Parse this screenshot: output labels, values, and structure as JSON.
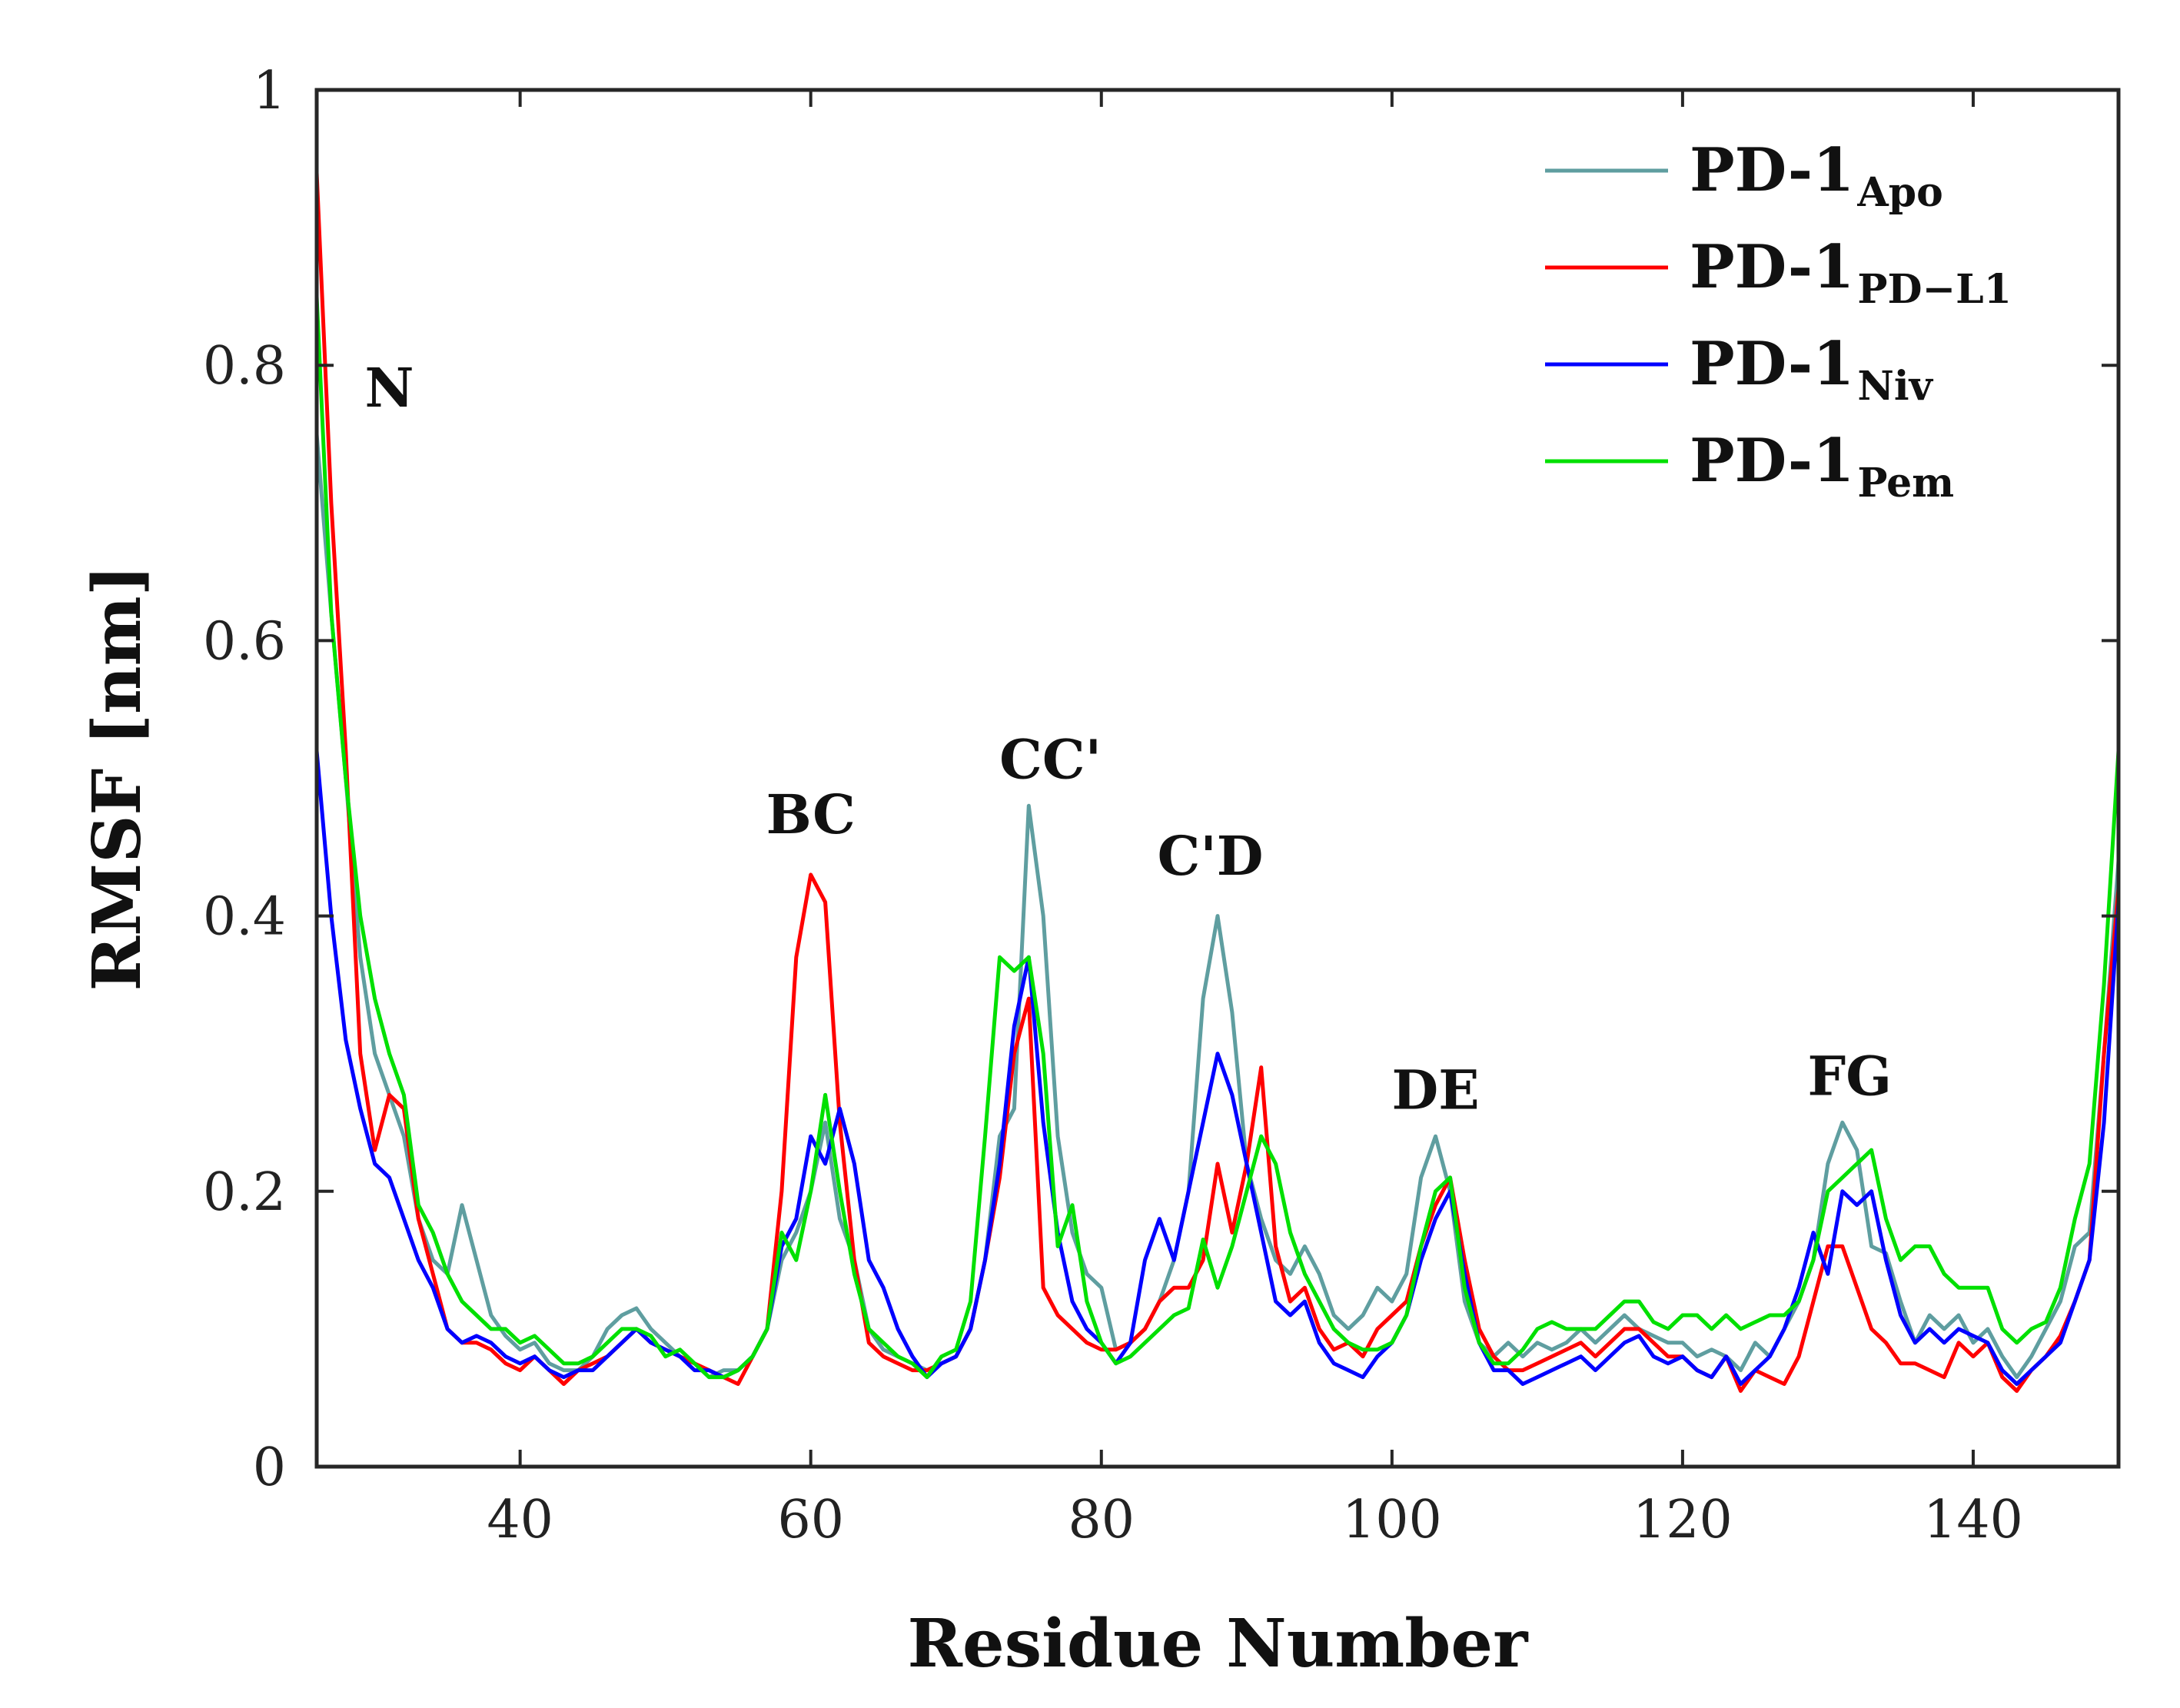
{
  "chart_data": {
    "type": "line",
    "xlabel": "Residue Number",
    "ylabel": "RMSF [nm]",
    "xlim": [
      26,
      150
    ],
    "ylim": [
      0,
      1
    ],
    "xticks": [
      40,
      60,
      80,
      100,
      120,
      140
    ],
    "yticks": [
      0,
      0.2,
      0.4,
      0.6,
      0.8,
      1
    ],
    "ytick_labels": [
      "0",
      "0.2",
      "0.4",
      "0.6",
      "0.8",
      "1"
    ],
    "grid": false,
    "legend_position": "top-right",
    "annotations": [
      {
        "text": "N",
        "x": 31,
        "y": 0.77
      },
      {
        "text": "BC",
        "x": 60,
        "y": 0.46
      },
      {
        "text": "CC'",
        "x": 76.5,
        "y": 0.5
      },
      {
        "text": "C'D",
        "x": 87.5,
        "y": 0.43
      },
      {
        "text": "DE",
        "x": 103,
        "y": 0.26
      },
      {
        "text": "FG",
        "x": 131.5,
        "y": 0.27
      }
    ],
    "series": [
      {
        "name": "PD-1",
        "subscript": "Apo",
        "color": "#5f9ea0",
        "x": [
          26,
          27,
          28,
          29,
          30,
          31,
          32,
          33,
          34,
          35,
          36,
          37,
          38,
          39,
          40,
          41,
          42,
          43,
          44,
          45,
          46,
          47,
          48,
          49,
          50,
          51,
          52,
          53,
          54,
          55,
          56,
          57,
          58,
          59,
          60,
          61,
          62,
          63,
          64,
          65,
          66,
          67,
          68,
          69,
          70,
          71,
          72,
          73,
          74,
          75,
          76,
          77,
          78,
          79,
          80,
          81,
          82,
          83,
          84,
          85,
          86,
          87,
          88,
          89,
          90,
          91,
          92,
          93,
          94,
          95,
          96,
          97,
          98,
          99,
          100,
          101,
          102,
          103,
          104,
          105,
          106,
          107,
          108,
          109,
          110,
          111,
          112,
          113,
          114,
          115,
          116,
          117,
          118,
          119,
          120,
          121,
          122,
          123,
          124,
          125,
          126,
          127,
          128,
          129,
          130,
          131,
          132,
          133,
          134,
          135,
          136,
          137,
          138,
          139,
          140,
          141,
          142,
          143,
          144,
          145,
          146,
          147,
          148,
          149,
          150
        ],
        "y": [
          0.75,
          0.62,
          0.5,
          0.37,
          0.3,
          0.27,
          0.24,
          0.18,
          0.15,
          0.14,
          0.19,
          0.15,
          0.11,
          0.095,
          0.085,
          0.09,
          0.075,
          0.07,
          0.07,
          0.08,
          0.1,
          0.11,
          0.115,
          0.1,
          0.09,
          0.08,
          0.075,
          0.065,
          0.07,
          0.07,
          0.08,
          0.1,
          0.15,
          0.17,
          0.2,
          0.25,
          0.18,
          0.15,
          0.1,
          0.085,
          0.08,
          0.075,
          0.07,
          0.075,
          0.08,
          0.1,
          0.15,
          0.24,
          0.26,
          0.48,
          0.4,
          0.24,
          0.17,
          0.14,
          0.13,
          0.085,
          0.09,
          0.1,
          0.12,
          0.15,
          0.2,
          0.34,
          0.4,
          0.33,
          0.22,
          0.18,
          0.15,
          0.14,
          0.16,
          0.14,
          0.11,
          0.1,
          0.11,
          0.13,
          0.12,
          0.14,
          0.21,
          0.24,
          0.2,
          0.12,
          0.09,
          0.08,
          0.09,
          0.08,
          0.09,
          0.085,
          0.09,
          0.1,
          0.09,
          0.1,
          0.11,
          0.1,
          0.095,
          0.09,
          0.09,
          0.08,
          0.085,
          0.08,
          0.07,
          0.09,
          0.08,
          0.1,
          0.12,
          0.15,
          0.22,
          0.25,
          0.23,
          0.16,
          0.155,
          0.12,
          0.09,
          0.11,
          0.1,
          0.11,
          0.09,
          0.1,
          0.08,
          0.065,
          0.08,
          0.1,
          0.12,
          0.16,
          0.17,
          0.3,
          0.44
        ]
      },
      {
        "name": "PD-1",
        "subscript": "PD−L1",
        "color": "#ff0000",
        "x": [
          26,
          27,
          28,
          29,
          30,
          31,
          32,
          33,
          34,
          35,
          36,
          37,
          38,
          39,
          40,
          41,
          42,
          43,
          44,
          45,
          46,
          47,
          48,
          49,
          50,
          51,
          52,
          53,
          54,
          55,
          56,
          57,
          58,
          59,
          60,
          61,
          62,
          63,
          64,
          65,
          66,
          67,
          68,
          69,
          70,
          71,
          72,
          73,
          74,
          75,
          76,
          77,
          78,
          79,
          80,
          81,
          82,
          83,
          84,
          85,
          86,
          87,
          88,
          89,
          90,
          91,
          92,
          93,
          94,
          95,
          96,
          97,
          98,
          99,
          100,
          101,
          102,
          103,
          104,
          105,
          106,
          107,
          108,
          109,
          110,
          111,
          112,
          113,
          114,
          115,
          116,
          117,
          118,
          119,
          120,
          121,
          122,
          123,
          124,
          125,
          126,
          127,
          128,
          129,
          130,
          131,
          132,
          133,
          134,
          135,
          136,
          137,
          138,
          139,
          140,
          141,
          142,
          143,
          144,
          145,
          146,
          147,
          148,
          149,
          150
        ],
        "y": [
          0.94,
          0.7,
          0.52,
          0.3,
          0.23,
          0.27,
          0.26,
          0.18,
          0.14,
          0.1,
          0.09,
          0.09,
          0.085,
          0.075,
          0.07,
          0.08,
          0.07,
          0.06,
          0.07,
          0.075,
          0.08,
          0.09,
          0.1,
          0.09,
          0.085,
          0.08,
          0.075,
          0.07,
          0.065,
          0.06,
          0.08,
          0.1,
          0.2,
          0.37,
          0.43,
          0.41,
          0.25,
          0.15,
          0.09,
          0.08,
          0.075,
          0.07,
          0.07,
          0.075,
          0.08,
          0.1,
          0.15,
          0.21,
          0.3,
          0.34,
          0.13,
          0.11,
          0.1,
          0.09,
          0.085,
          0.085,
          0.09,
          0.1,
          0.12,
          0.13,
          0.13,
          0.15,
          0.22,
          0.17,
          0.22,
          0.29,
          0.16,
          0.12,
          0.13,
          0.1,
          0.085,
          0.09,
          0.08,
          0.1,
          0.11,
          0.12,
          0.16,
          0.19,
          0.21,
          0.15,
          0.1,
          0.08,
          0.07,
          0.07,
          0.075,
          0.08,
          0.085,
          0.09,
          0.08,
          0.09,
          0.1,
          0.1,
          0.09,
          0.08,
          0.08,
          0.07,
          0.065,
          0.08,
          0.055,
          0.07,
          0.065,
          0.06,
          0.08,
          0.12,
          0.16,
          0.16,
          0.13,
          0.1,
          0.09,
          0.075,
          0.075,
          0.07,
          0.065,
          0.09,
          0.08,
          0.09,
          0.065,
          0.055,
          0.07,
          0.08,
          0.095,
          0.12,
          0.15,
          0.3,
          0.42
        ]
      },
      {
        "name": "PD-1",
        "subscript": "Niv",
        "color": "#0000ff",
        "x": [
          26,
          27,
          28,
          29,
          30,
          31,
          32,
          33,
          34,
          35,
          36,
          37,
          38,
          39,
          40,
          41,
          42,
          43,
          44,
          45,
          46,
          47,
          48,
          49,
          50,
          51,
          52,
          53,
          54,
          55,
          56,
          57,
          58,
          59,
          60,
          61,
          62,
          63,
          64,
          65,
          66,
          67,
          68,
          69,
          70,
          71,
          72,
          73,
          74,
          75,
          76,
          77,
          78,
          79,
          80,
          81,
          82,
          83,
          84,
          85,
          86,
          87,
          88,
          89,
          90,
          91,
          92,
          93,
          94,
          95,
          96,
          97,
          98,
          99,
          100,
          101,
          102,
          103,
          104,
          105,
          106,
          107,
          108,
          109,
          110,
          111,
          112,
          113,
          114,
          115,
          116,
          117,
          118,
          119,
          120,
          121,
          122,
          123,
          124,
          125,
          126,
          127,
          128,
          129,
          130,
          131,
          132,
          133,
          134,
          135,
          136,
          137,
          138,
          139,
          140,
          141,
          142,
          143,
          144,
          145,
          146,
          147,
          148,
          149,
          150
        ],
        "y": [
          0.52,
          0.4,
          0.31,
          0.26,
          0.22,
          0.21,
          0.18,
          0.15,
          0.13,
          0.1,
          0.09,
          0.095,
          0.09,
          0.08,
          0.075,
          0.08,
          0.07,
          0.065,
          0.07,
          0.07,
          0.08,
          0.09,
          0.1,
          0.09,
          0.085,
          0.08,
          0.07,
          0.07,
          0.065,
          0.07,
          0.08,
          0.1,
          0.16,
          0.18,
          0.24,
          0.22,
          0.26,
          0.22,
          0.15,
          0.13,
          0.1,
          0.08,
          0.065,
          0.075,
          0.08,
          0.1,
          0.15,
          0.22,
          0.32,
          0.37,
          0.25,
          0.17,
          0.12,
          0.1,
          0.09,
          0.075,
          0.09,
          0.15,
          0.18,
          0.15,
          0.2,
          0.25,
          0.3,
          0.27,
          0.22,
          0.17,
          0.12,
          0.11,
          0.12,
          0.09,
          0.075,
          0.07,
          0.065,
          0.08,
          0.09,
          0.11,
          0.15,
          0.18,
          0.2,
          0.14,
          0.09,
          0.07,
          0.07,
          0.06,
          0.065,
          0.07,
          0.075,
          0.08,
          0.07,
          0.08,
          0.09,
          0.095,
          0.08,
          0.075,
          0.08,
          0.07,
          0.065,
          0.08,
          0.06,
          0.07,
          0.08,
          0.1,
          0.13,
          0.17,
          0.14,
          0.2,
          0.19,
          0.2,
          0.15,
          0.11,
          0.09,
          0.1,
          0.09,
          0.1,
          0.095,
          0.09,
          0.07,
          0.06,
          0.07,
          0.08,
          0.09,
          0.12,
          0.15,
          0.25,
          0.41
        ]
      },
      {
        "name": "PD-1",
        "subscript": "Pem",
        "color": "#00e000",
        "x": [
          26,
          27,
          28,
          29,
          30,
          31,
          32,
          33,
          34,
          35,
          36,
          37,
          38,
          39,
          40,
          41,
          42,
          43,
          44,
          45,
          46,
          47,
          48,
          49,
          50,
          51,
          52,
          53,
          54,
          55,
          56,
          57,
          58,
          59,
          60,
          61,
          62,
          63,
          64,
          65,
          66,
          67,
          68,
          69,
          70,
          71,
          72,
          73,
          74,
          75,
          76,
          77,
          78,
          79,
          80,
          81,
          82,
          83,
          84,
          85,
          86,
          87,
          88,
          89,
          90,
          91,
          92,
          93,
          94,
          95,
          96,
          97,
          98,
          99,
          100,
          101,
          102,
          103,
          104,
          105,
          106,
          107,
          108,
          109,
          110,
          111,
          112,
          113,
          114,
          115,
          116,
          117,
          118,
          119,
          120,
          121,
          122,
          123,
          124,
          125,
          126,
          127,
          128,
          129,
          130,
          131,
          132,
          133,
          134,
          135,
          136,
          137,
          138,
          139,
          140,
          141,
          142,
          143,
          144,
          145,
          146,
          147,
          148,
          149,
          150
        ],
        "y": [
          0.85,
          0.62,
          0.5,
          0.4,
          0.34,
          0.3,
          0.27,
          0.19,
          0.17,
          0.14,
          0.12,
          0.11,
          0.1,
          0.1,
          0.09,
          0.095,
          0.085,
          0.075,
          0.075,
          0.08,
          0.09,
          0.1,
          0.1,
          0.095,
          0.08,
          0.085,
          0.075,
          0.065,
          0.065,
          0.07,
          0.08,
          0.1,
          0.17,
          0.15,
          0.2,
          0.27,
          0.2,
          0.14,
          0.1,
          0.09,
          0.08,
          0.075,
          0.065,
          0.08,
          0.085,
          0.12,
          0.24,
          0.37,
          0.36,
          0.37,
          0.3,
          0.16,
          0.19,
          0.12,
          0.09,
          0.075,
          0.08,
          0.09,
          0.1,
          0.11,
          0.115,
          0.165,
          0.13,
          0.16,
          0.2,
          0.24,
          0.22,
          0.17,
          0.14,
          0.12,
          0.1,
          0.09,
          0.085,
          0.085,
          0.09,
          0.11,
          0.16,
          0.2,
          0.21,
          0.13,
          0.09,
          0.075,
          0.075,
          0.085,
          0.1,
          0.105,
          0.1,
          0.1,
          0.1,
          0.11,
          0.12,
          0.12,
          0.105,
          0.1,
          0.11,
          0.11,
          0.1,
          0.11,
          0.1,
          0.105,
          0.11,
          0.11,
          0.12,
          0.15,
          0.2,
          0.21,
          0.22,
          0.23,
          0.18,
          0.15,
          0.16,
          0.16,
          0.14,
          0.13,
          0.13,
          0.13,
          0.1,
          0.09,
          0.1,
          0.105,
          0.13,
          0.18,
          0.22,
          0.35,
          0.52
        ]
      }
    ]
  }
}
